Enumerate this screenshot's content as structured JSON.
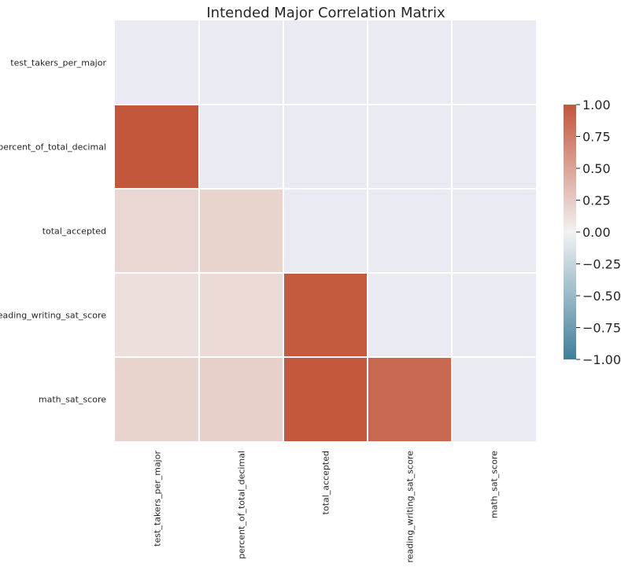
{
  "chart_data": {
    "type": "heatmap",
    "title": "Intended Major Correlation Matrix",
    "labels": [
      "test_takers_per_major",
      "percent_of_total_decimal",
      "total_accepted",
      "reading_writing_sat_score",
      "math_sat_score"
    ],
    "matrix": [
      [
        null,
        null,
        null,
        null,
        null
      ],
      [
        0.99,
        null,
        null,
        null,
        null
      ],
      [
        0.17,
        0.2,
        null,
        null,
        null
      ],
      [
        0.12,
        0.15,
        0.97,
        null,
        null
      ],
      [
        0.2,
        0.22,
        0.98,
        0.88,
        null
      ]
    ],
    "mask": "upper triangle including diagonal",
    "colorbar": {
      "min": -1.0,
      "max": 1.0,
      "ticks": [
        "1.00",
        "0.75",
        "0.50",
        "0.25",
        "0.00",
        "−0.25",
        "−0.50",
        "−0.75",
        "−1.00"
      ],
      "tick_values": [
        1.0,
        0.75,
        0.5,
        0.25,
        0.0,
        -0.25,
        -0.5,
        -0.75,
        -1.0
      ],
      "colors": {
        "negative": "#3f7f9b",
        "center": "#f2f2f2",
        "positive": "#c3553a"
      }
    },
    "background": "#eaeaf2",
    "grid_line_color": "#ffffff"
  }
}
